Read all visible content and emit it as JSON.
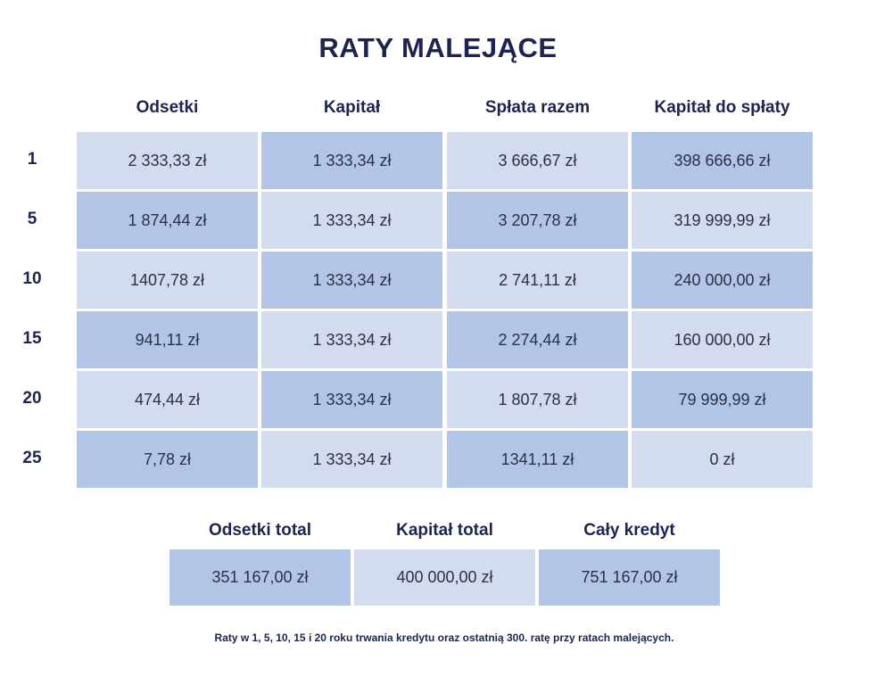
{
  "chart_data": {
    "type": "table",
    "title": "RATY MALEJĄCE",
    "columns": [
      "Odsetki",
      "Kapitał",
      "Spłata razem",
      "Kapitał do spłaty"
    ],
    "rows": [
      {
        "label": "1",
        "values": [
          "2 333,33 zł",
          "1 333,34 zł",
          "3 666,67 zł",
          "398 666,66 zł"
        ]
      },
      {
        "label": "5",
        "values": [
          "1 874,44 zł",
          "1 333,34 zł",
          "3 207,78 zł",
          "319 999,99 zł"
        ]
      },
      {
        "label": "10",
        "values": [
          "1407,78 zł",
          "1 333,34 zł",
          "2 741,11 zł",
          "240 000,00 zł"
        ]
      },
      {
        "label": "15",
        "values": [
          "941,11 zł",
          "1 333,34 zł",
          "2 274,44 zł",
          "160 000,00 zł"
        ]
      },
      {
        "label": "20",
        "values": [
          "474,44 zł",
          "1 333,34 zł",
          "1 807,78 zł",
          "79 999,99 zł"
        ]
      },
      {
        "label": "25",
        "values": [
          "7,78 zł",
          "1 333,34 zł",
          "1341,11 zł",
          "0 zł"
        ]
      }
    ],
    "totals": {
      "columns": [
        "Odsetki total",
        "Kapitał total",
        "Cały kredyt"
      ],
      "values": [
        "351 167,00 zł",
        "400 000,00 zł",
        "751 167,00 zł"
      ]
    },
    "caption": "Raty w 1, 5, 10, 15 i 20 roku trwania kredytu oraz ostatnią 300. ratę przy ratach malejących."
  },
  "colors": {
    "title": "#1d2450",
    "cell_light": "#d3dcee",
    "cell_dark": "#b3c5e6"
  }
}
